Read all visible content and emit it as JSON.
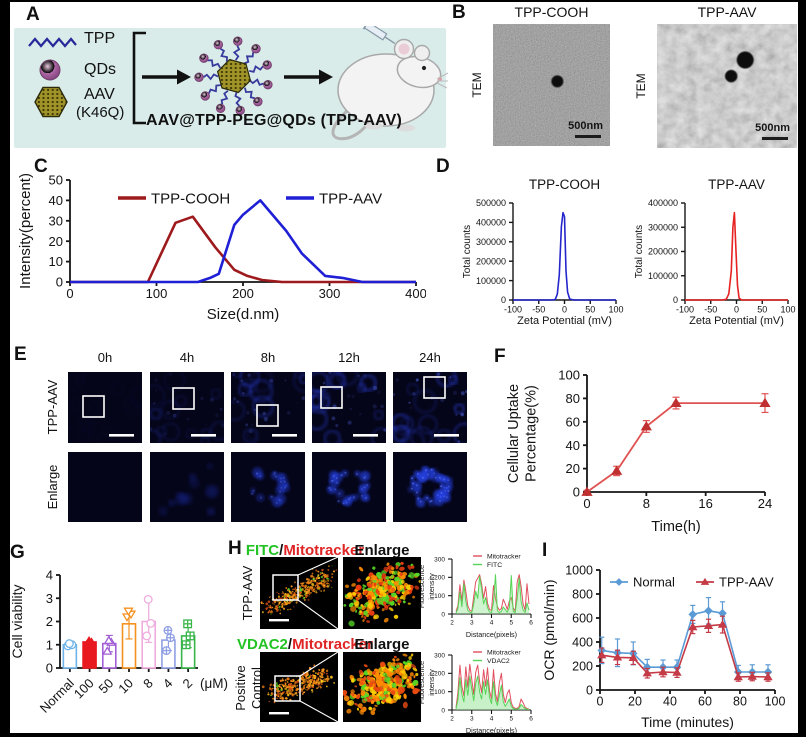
{
  "panels": {
    "a": {
      "label": "A",
      "items": [
        {
          "label": "TPP"
        },
        {
          "label": "QDs"
        },
        {
          "label": "AAV",
          "sublabel": "(K46Q)"
        }
      ],
      "caption": "AAV@TPP-PEG@QDs (TPP-AAV)"
    },
    "b": {
      "label": "B",
      "cols": [
        {
          "title": "TPP-COOH",
          "side": "TEM",
          "scalebar": "500nm"
        },
        {
          "title": "TPP-AAV",
          "side": "TEM",
          "scalebar": "500nm"
        }
      ]
    },
    "c": {
      "label": "C"
    },
    "d": {
      "label": "D"
    },
    "e": {
      "label": "E",
      "times": [
        "0h",
        "4h",
        "8h",
        "12h",
        "24h"
      ],
      "rows": [
        "TPP-AAV",
        "Enlarge"
      ]
    },
    "f": {
      "label": "F"
    },
    "g": {
      "label": "G"
    },
    "h": {
      "label": "H",
      "rows": [
        {
          "green": "FITC",
          "slash": "/",
          "red": "Mitotracker",
          "enlarge": "Enlarge",
          "side1": "TPP-AAV",
          "side2": ""
        },
        {
          "green": "VDAC2",
          "slash": "/",
          "red": "Mitotracker",
          "enlarge": "Enlarge",
          "side1": "Positive",
          "side2": "Control"
        }
      ]
    },
    "i": {
      "label": "I"
    }
  },
  "chart_data": [
    {
      "id": "c",
      "type": "line",
      "title": "",
      "xlabel": "Size(d.nm)",
      "ylabel": "Intensity(percent)",
      "xlim": [
        0,
        400
      ],
      "ylim": [
        0,
        50
      ],
      "xticks": [
        0,
        100,
        200,
        300,
        400
      ],
      "yticks": [
        0,
        10,
        20,
        30,
        40,
        50
      ],
      "grid": false,
      "legend_position": "top-inside",
      "series": [
        {
          "name": "TPP-COOH",
          "color": "#9e1a1c",
          "x": [
            0,
            90,
            122,
            142,
            168,
            190,
            205,
            222,
            245,
            400
          ],
          "y": [
            0,
            0,
            29,
            32,
            17,
            6,
            3,
            1,
            0,
            0
          ]
        },
        {
          "name": "TPP-AAV",
          "color": "#1f1fd6",
          "x": [
            0,
            148,
            162,
            172,
            190,
            200,
            220,
            250,
            268,
            295,
            315,
            338,
            400
          ],
          "y": [
            0,
            0,
            2,
            4,
            28,
            33,
            40,
            25,
            14,
            3,
            2,
            0,
            0
          ]
        }
      ]
    },
    {
      "id": "d1",
      "type": "line",
      "title": "TPP-COOH",
      "xlabel": "Zeta Potential (mV)",
      "ylabel": "Total counts",
      "xlim": [
        -100,
        100
      ],
      "ylim": [
        0,
        500000
      ],
      "xticks": [
        -100,
        -50,
        0,
        50,
        100
      ],
      "yticks": [
        0,
        100000,
        200000,
        300000,
        400000,
        500000
      ],
      "series": [
        {
          "name": "TPP-COOH",
          "color": "#2525cc",
          "x": [
            -100,
            -25,
            -18,
            -14,
            -10,
            -6,
            -3,
            0,
            3,
            6,
            10,
            18,
            100
          ],
          "y": [
            0,
            0,
            2000,
            30000,
            130000,
            380000,
            450000,
            430000,
            150000,
            40000,
            5000,
            0,
            0
          ]
        }
      ]
    },
    {
      "id": "d2",
      "type": "line",
      "title": "TPP-AAV",
      "xlabel": "Zeta Potential (mV)",
      "ylabel": "Total counts",
      "xlim": [
        -100,
        100
      ],
      "ylim": [
        0,
        400000
      ],
      "xticks": [
        -100,
        -50,
        0,
        50,
        100
      ],
      "yticks": [
        0,
        100000,
        200000,
        300000,
        400000
      ],
      "series": [
        {
          "name": "TPP-AAV",
          "color": "#e62222",
          "x": [
            -100,
            -28,
            -20,
            -15,
            -10,
            -7,
            -4,
            -1,
            2,
            5,
            10,
            100
          ],
          "y": [
            0,
            0,
            3000,
            25000,
            120000,
            300000,
            360000,
            200000,
            60000,
            8000,
            0,
            0
          ]
        }
      ]
    },
    {
      "id": "f",
      "type": "line",
      "xlabel": "Time(h)",
      "ylabel": "Cellular Uptake",
      "ylabel2": "Percentage(%)",
      "xlim": [
        0,
        24
      ],
      "ylim": [
        0,
        100
      ],
      "xticks": [
        0,
        8,
        16,
        24
      ],
      "yticks": [
        0,
        20,
        40,
        60,
        80,
        100
      ],
      "series": [
        {
          "name": "TPP-AAV",
          "color": "#e05252",
          "marker": "triangle",
          "mcolor": "#c03030",
          "x": [
            0,
            4,
            8,
            12,
            24
          ],
          "y": [
            0,
            18,
            56,
            76,
            76
          ],
          "err": [
            1.5,
            4,
            5,
            5,
            8
          ]
        }
      ]
    },
    {
      "id": "g",
      "type": "bar-scatter",
      "ylabel": "Cell viability",
      "ylim": [
        0,
        4
      ],
      "yticks": [
        0,
        1,
        2,
        3,
        4
      ],
      "unit": "(μM)",
      "bars": [
        {
          "label": "Normal",
          "value": 1.0,
          "err": 0.06,
          "color": "#6fb3e8",
          "filled": false,
          "marker": "circle",
          "points": [
            0.95,
            1.0,
            1.05
          ]
        },
        {
          "label": "100",
          "value": 1.12,
          "err": 0.05,
          "color": "#e8191f",
          "filled": true,
          "marker": "triangle",
          "points": [
            1.05,
            1.1,
            1.16
          ]
        },
        {
          "label": "50",
          "value": 1.05,
          "err": 0.35,
          "color": "#a25fd6",
          "filled": false,
          "marker": "triangle",
          "points": [
            0.72,
            1.1,
            1.18
          ]
        },
        {
          "label": "10",
          "value": 1.9,
          "err": 0.65,
          "color": "#f59120",
          "filled": false,
          "marker": "triangle-down",
          "points": [
            2.2,
            2.32,
            2.45
          ]
        },
        {
          "label": "8",
          "value": 2.0,
          "err": 0.9,
          "color": "#efabdd",
          "filled": false,
          "marker": "circle",
          "points": [
            1.38,
            1.92,
            2.95
          ]
        },
        {
          "label": "4",
          "value": 1.2,
          "err": 0.45,
          "color": "#8f9fe3",
          "filled": false,
          "marker": "circle-plus",
          "points": [
            0.75,
            1.3,
            1.62
          ]
        },
        {
          "label": "2",
          "value": 1.38,
          "err": 0.5,
          "color": "#39b54a",
          "filled": false,
          "marker": "square-plus",
          "points": [
            1.0,
            1.38,
            1.9
          ]
        }
      ]
    },
    {
      "id": "h1",
      "type": "line",
      "xlabel": "Distance(pixels)",
      "ylabel": "Fluorescence",
      "ylabel2": "intensity",
      "xlim": [
        2,
        6
      ],
      "ylim": [
        0,
        300
      ],
      "xticks": [
        2,
        3,
        4,
        5,
        6
      ],
      "yticks": [
        0,
        100,
        200,
        300
      ],
      "legend_position": "top-right",
      "series": [
        {
          "name": "Mitotracker",
          "color": "#e05060",
          "x": [
            2.2,
            2.3,
            2.4,
            2.5,
            2.6,
            2.7,
            2.8,
            2.9,
            3.0,
            3.1,
            3.2,
            3.3,
            3.4,
            3.5,
            3.6,
            3.7,
            3.8,
            3.9,
            4.0,
            4.1,
            4.2,
            4.3,
            4.4,
            4.5,
            4.6,
            4.7,
            4.8,
            4.9,
            5.0,
            5.1,
            5.2,
            5.3,
            5.4,
            5.5,
            5.6,
            5.7,
            5.8,
            5.9
          ],
          "y": [
            15,
            45,
            160,
            70,
            185,
            125,
            45,
            20,
            15,
            95,
            175,
            195,
            215,
            165,
            85,
            150,
            60,
            25,
            20,
            155,
            85,
            40,
            20,
            30,
            80,
            55,
            25,
            70,
            90,
            35,
            15,
            175,
            215,
            150,
            55,
            20,
            165,
            55
          ]
        },
        {
          "name": "FITC",
          "color": "#55d455",
          "fill": "rgba(120,220,120,0.35)",
          "x": [
            2.2,
            2.3,
            2.4,
            2.5,
            2.6,
            2.7,
            2.8,
            2.9,
            3.0,
            3.1,
            3.2,
            3.3,
            3.4,
            3.5,
            3.6,
            3.7,
            3.8,
            3.9,
            4.0,
            4.1,
            4.2,
            4.3,
            4.4,
            4.5,
            4.6,
            4.7,
            4.8,
            4.9,
            5.0,
            5.1,
            5.2,
            5.3,
            5.4,
            5.5,
            5.6,
            5.7,
            5.8,
            5.9
          ],
          "y": [
            5,
            30,
            120,
            40,
            165,
            70,
            20,
            10,
            8,
            55,
            125,
            85,
            205,
            140,
            55,
            90,
            35,
            12,
            8,
            65,
            215,
            18,
            8,
            14,
            38,
            24,
            10,
            35,
            210,
            14,
            8,
            85,
            195,
            70,
            22,
            8,
            60,
            20
          ]
        }
      ]
    },
    {
      "id": "h2",
      "type": "line",
      "xlabel": "Distance(pixels)",
      "ylabel": "Fluorescence",
      "ylabel2": "intensity",
      "xlim": [
        2,
        6
      ],
      "ylim": [
        0,
        300
      ],
      "xticks": [
        2,
        3,
        4,
        5,
        6
      ],
      "yticks": [
        0,
        100,
        200,
        300
      ],
      "legend_position": "top-right",
      "series": [
        {
          "name": "Mitotracker",
          "color": "#e05060",
          "x": [
            2.2,
            2.3,
            2.4,
            2.5,
            2.6,
            2.7,
            2.8,
            2.9,
            3.0,
            3.1,
            3.2,
            3.3,
            3.4,
            3.5,
            3.6,
            3.7,
            3.8,
            3.9,
            4.0,
            4.1,
            4.2,
            4.3,
            4.4,
            4.5,
            4.6,
            4.7,
            4.8,
            4.9,
            5.0,
            5.1,
            5.2,
            5.3,
            5.4,
            5.5,
            5.6,
            5.7,
            5.8,
            5.9
          ],
          "y": [
            12,
            95,
            245,
            130,
            75,
            235,
            125,
            250,
            165,
            85,
            205,
            245,
            155,
            95,
            220,
            130,
            230,
            105,
            60,
            220,
            90,
            45,
            150,
            200,
            85,
            40,
            90,
            110,
            40,
            15,
            10,
            8,
            20,
            60,
            40,
            15,
            8,
            5
          ]
        },
        {
          "name": "VDAC2",
          "color": "#55d455",
          "fill": "rgba(120,220,120,0.4)",
          "x": [
            2.2,
            2.3,
            2.4,
            2.5,
            2.6,
            2.7,
            2.8,
            2.9,
            3.0,
            3.1,
            3.2,
            3.3,
            3.4,
            3.5,
            3.6,
            3.7,
            3.8,
            3.9,
            4.0,
            4.1,
            4.2,
            4.3,
            4.4,
            4.5,
            4.6,
            4.7,
            4.8,
            4.9,
            5.0,
            5.1,
            5.2,
            5.3,
            5.4,
            5.5,
            5.6,
            5.7,
            5.8,
            5.9
          ],
          "y": [
            6,
            55,
            175,
            85,
            45,
            165,
            80,
            185,
            115,
            50,
            145,
            185,
            100,
            60,
            155,
            85,
            165,
            70,
            35,
            155,
            55,
            25,
            85,
            135,
            45,
            20,
            40,
            60,
            20,
            8,
            5,
            4,
            10,
            30,
            18,
            8,
            4,
            3
          ]
        }
      ]
    },
    {
      "id": "i",
      "type": "line",
      "xlabel": "Time (minutes)",
      "ylabel": "OCR (pmol/min)",
      "xlim": [
        0,
        100
      ],
      "ylim": [
        0,
        1000
      ],
      "xticks": [
        0,
        20,
        40,
        60,
        80,
        100
      ],
      "yticks": [
        0,
        200,
        400,
        600,
        800,
        1000
      ],
      "legend_position": "top-inside",
      "series": [
        {
          "name": "Normal",
          "color": "#5b9bd5",
          "marker": "diamond",
          "x": [
            1,
            10,
            19,
            27,
            36,
            44,
            53,
            62,
            70,
            79,
            87,
            96
          ],
          "y": [
            330,
            310,
            305,
            190,
            190,
            190,
            630,
            660,
            640,
            150,
            150,
            150
          ],
          "err": [
            110,
            115,
            95,
            65,
            60,
            60,
            75,
            110,
            95,
            55,
            60,
            60
          ]
        },
        {
          "name": "TPP-AAV",
          "color": "#c43a46",
          "marker": "triangle",
          "x": [
            1,
            10,
            19,
            27,
            36,
            44,
            53,
            62,
            70,
            79,
            87,
            96
          ],
          "y": [
            290,
            272,
            268,
            140,
            150,
            145,
            525,
            535,
            545,
            108,
            112,
            108
          ],
          "err": [
            60,
            60,
            55,
            40,
            40,
            40,
            55,
            55,
            70,
            35,
            35,
            35
          ]
        }
      ]
    }
  ]
}
